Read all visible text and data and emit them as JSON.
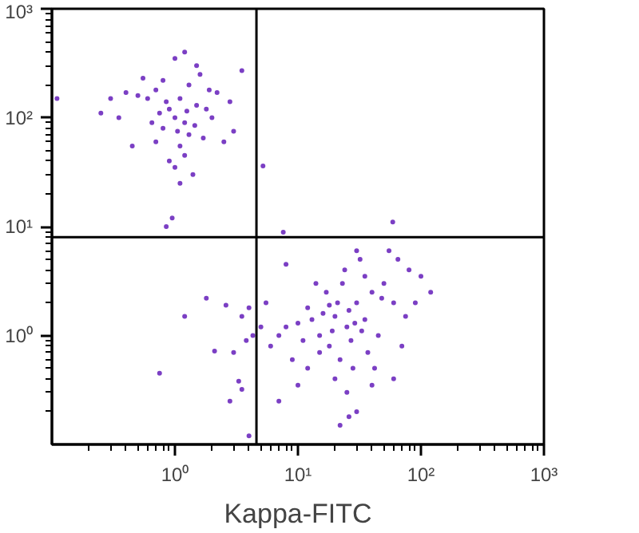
{
  "chart_data": {
    "type": "scatter",
    "xlabel": "Kappa-FITC",
    "log": "xy",
    "grid": false,
    "marker": "circle",
    "xlim": [
      0.1,
      1000
    ],
    "ylim": [
      0.1,
      1000
    ],
    "xticks": [
      {
        "value": 1,
        "label": "10⁰"
      },
      {
        "value": 10,
        "label": "10¹"
      },
      {
        "value": 100,
        "label": "10²"
      },
      {
        "value": 1000,
        "label": "10³"
      }
    ],
    "yticks": [
      {
        "value": 1,
        "label": "10⁰"
      },
      {
        "value": 10,
        "label": "10¹"
      },
      {
        "value": 100,
        "label": "10²"
      },
      {
        "value": 1000,
        "label": "10³"
      }
    ],
    "ref_lines": [
      {
        "axis": "x",
        "value": 4.6,
        "color": "#000000"
      },
      {
        "axis": "y",
        "value": 8,
        "color": "#000000"
      }
    ],
    "series": [
      {
        "color": "#7b3fc4",
        "x": [
          1.0,
          0.9,
          1.2,
          1.1,
          0.8,
          1.3,
          1.5,
          1.6,
          0.7,
          0.6,
          0.5,
          0.4,
          0.35,
          0.45,
          0.7,
          0.9,
          1.0,
          1.2,
          1.4,
          1.1,
          1.3,
          1.8,
          2.0,
          2.5,
          2.2,
          1.9,
          0.8,
          1.0,
          1.2,
          0.95,
          0.85,
          0.55,
          0.3,
          1.5,
          1.7,
          0.75,
          1.05,
          1.25,
          0.65,
          1.45,
          3.5,
          3.0,
          2.8,
          0.85,
          1.1,
          0.11,
          0.25,
          5.2,
          7.6,
          59,
          20,
          25,
          15,
          30,
          18,
          22,
          12,
          10,
          8,
          7,
          35,
          40,
          50,
          60,
          45,
          28,
          25,
          30,
          20,
          17,
          14,
          24,
          32,
          55,
          65,
          80,
          100,
          120,
          70,
          60,
          40,
          12,
          9,
          6,
          5,
          5.5,
          16,
          19,
          21,
          26,
          27,
          33,
          37,
          13,
          11,
          23,
          18,
          29,
          15,
          35,
          8,
          10,
          7,
          42,
          22,
          26,
          48,
          75,
          90,
          30,
          2.6,
          3.5,
          4.0,
          4.3,
          3.8,
          3.0,
          1.2,
          0.75,
          2.8,
          3.3,
          4.0,
          1.8,
          3.5,
          2.1
        ],
        "values": [
          100,
          120,
          90,
          150,
          80,
          200,
          300,
          250,
          60,
          150,
          160,
          170,
          100,
          55,
          180,
          40,
          35,
          45,
          30,
          25,
          70,
          120,
          100,
          60,
          170,
          180,
          220,
          350,
          400,
          12,
          10,
          230,
          150,
          130,
          65,
          110,
          75,
          115,
          90,
          85,
          270,
          75,
          140,
          140,
          55,
          150,
          110,
          36,
          8.9,
          11,
          1.5,
          1.2,
          1.0,
          2.0,
          0.8,
          0.6,
          1.8,
          1.3,
          1.2,
          1.0,
          1.4,
          2.5,
          3.0,
          2.0,
          1.0,
          0.5,
          0.3,
          0.2,
          0.4,
          2.5,
          3.0,
          4.0,
          5.0,
          6.0,
          5.0,
          4.0,
          3.5,
          2.5,
          0.8,
          0.4,
          0.35,
          0.5,
          0.6,
          0.8,
          1.2,
          2.0,
          1.6,
          1.1,
          2.0,
          1.7,
          0.9,
          1.1,
          0.7,
          1.4,
          0.9,
          3.0,
          1.9,
          1.3,
          0.7,
          3.5,
          4.5,
          0.35,
          0.25,
          0.5,
          0.15,
          0.18,
          2.2,
          1.5,
          2.0,
          6.0,
          1.9,
          1.5,
          1.8,
          1.0,
          0.9,
          0.7,
          1.5,
          0.45,
          0.25,
          0.38,
          0.12,
          2.2,
          0.32,
          0.72
        ]
      }
    ]
  }
}
